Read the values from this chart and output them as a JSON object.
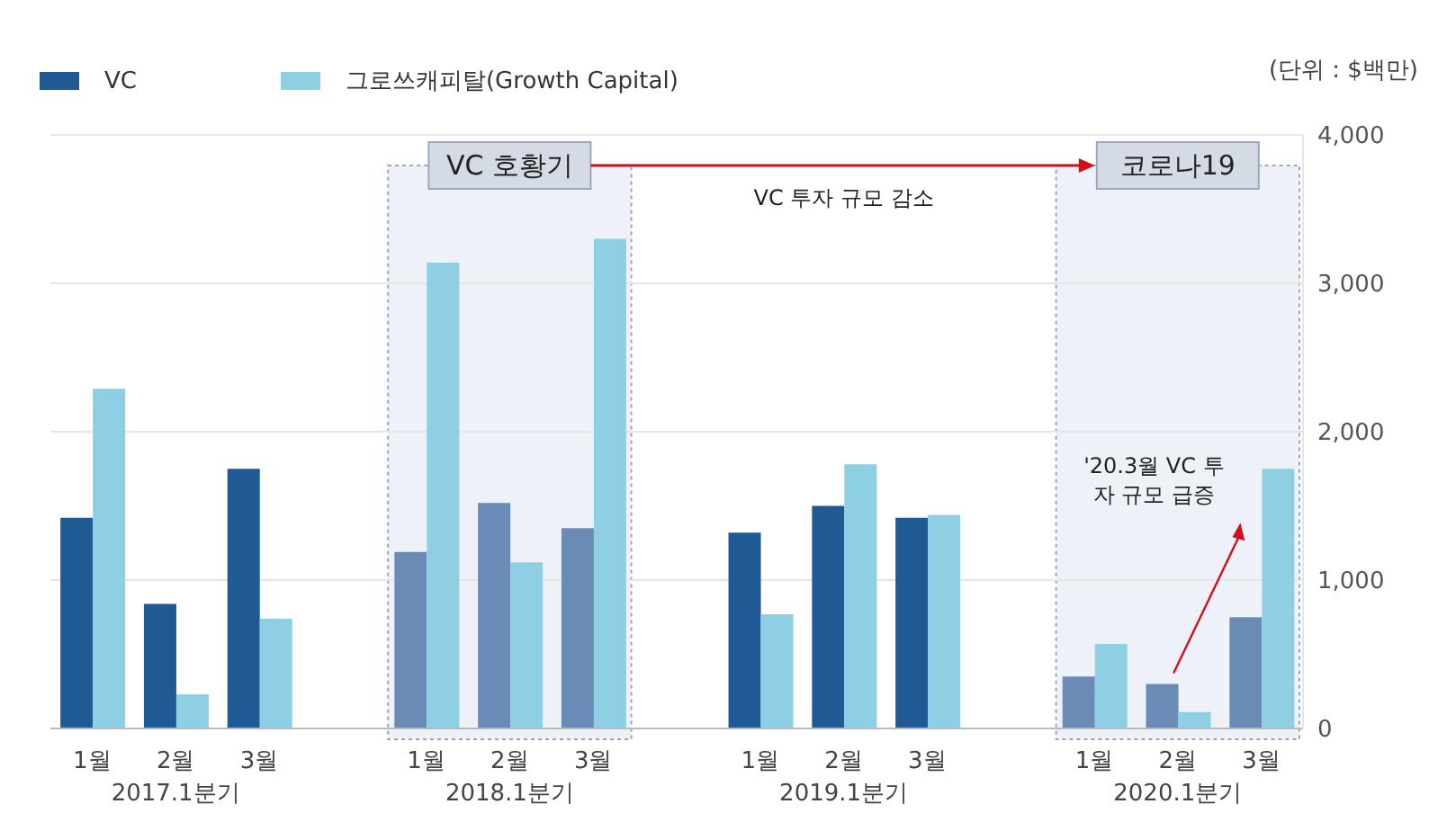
{
  "chart_data": {
    "type": "bar",
    "categories": [
      "1월",
      "2월",
      "3월",
      null,
      "1월",
      "2월",
      "3월",
      null,
      "1월",
      "2월",
      "3월",
      null,
      "1월",
      "2월",
      "3월"
    ],
    "series": [
      {
        "name": "VC",
        "color": "#1f5a94",
        "colors": [
          "#1f5a94",
          "#1f5a94",
          "#1f5a94",
          null,
          "#6a8bb5",
          "#6a8bb5",
          "#6a8bb5",
          null,
          "#1f5a94",
          "#1f5a94",
          "#1f5a94",
          null,
          "#6a8bb5",
          "#6a8bb5",
          "#6a8bb5"
        ],
        "values": [
          1420,
          840,
          1750,
          null,
          1190,
          1520,
          1350,
          null,
          1320,
          1500,
          1420,
          null,
          350,
          300,
          750
        ]
      },
      {
        "name": "그로쓰캐피탈(Growth Capital)",
        "color": "#8fcfe4",
        "values": [
          2290,
          230,
          740,
          null,
          3140,
          1120,
          3300,
          null,
          770,
          1780,
          1440,
          null,
          570,
          110,
          1750
        ]
      }
    ],
    "ylim": [
      0,
      4000
    ],
    "yticks": [
      0,
      {
        "value": 1000,
        "label": "1,000"
      },
      {
        "value": 2000,
        "label": "2,000"
      },
      {
        "value": 3000,
        "label": "3,000"
      },
      {
        "value": 4000,
        "label": "4,000"
      }
    ],
    "grid": "y",
    "legend": "top left",
    "annotations": [
      "(단위 : $백만)",
      "2017.1분기",
      "2018.1분기",
      "2019.1분기",
      "2020.1분기",
      "VC 투자 규모 감소",
      "'20.3월 VC 투자 규모 급증",
      "VC 호황기",
      "코로나19"
    ]
  }
}
